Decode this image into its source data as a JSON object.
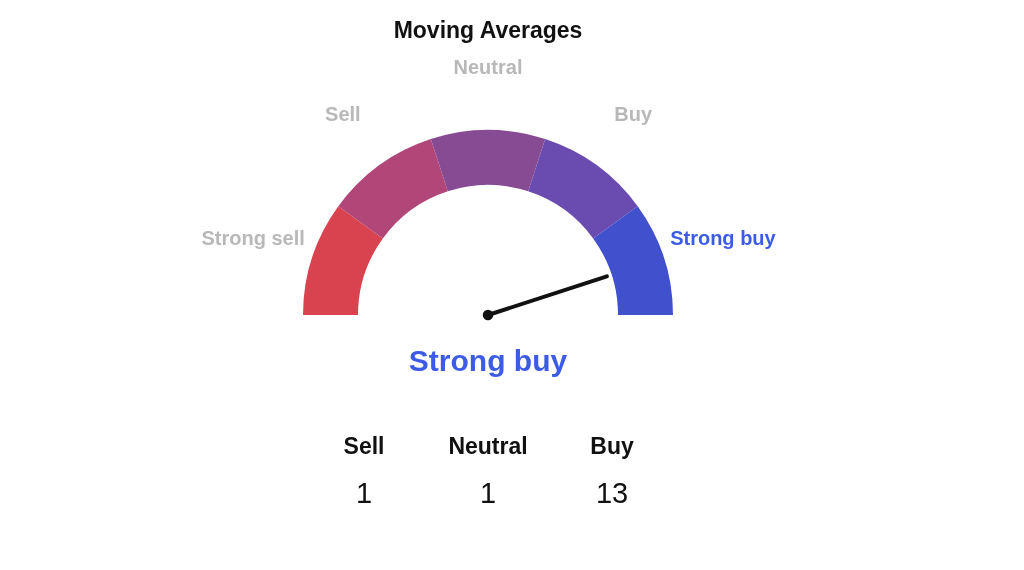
{
  "chart_data": [
    {
      "type": "donut",
      "title": "Moving Averages",
      "categories": [
        "Strong sell",
        "Sell",
        "Neutral",
        "Buy",
        "Strong buy"
      ],
      "values": [
        20,
        20,
        20,
        20,
        20
      ],
      "colors": [
        "#d9434f",
        "#b04778",
        "#874b93",
        "#6a4cb0",
        "#4150cc"
      ],
      "needle": "Strong buy"
    },
    {
      "type": "other",
      "categories": [
        "Sell",
        "Neutral",
        "Buy"
      ],
      "values": [
        1,
        1,
        13
      ],
      "data_labels": true
    }
  ]
}
